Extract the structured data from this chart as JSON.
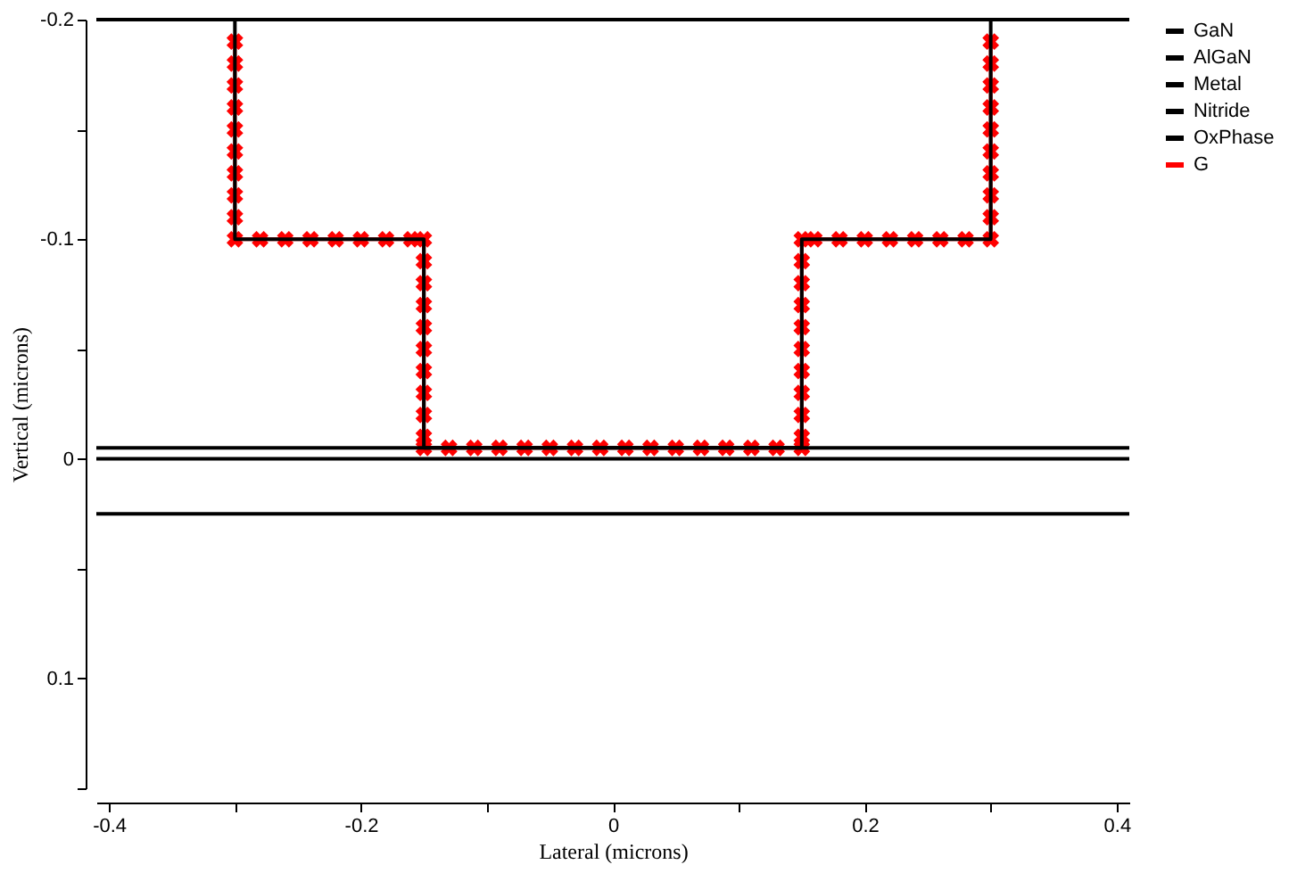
{
  "chart_data": {
    "type": "line",
    "xlabel": "Lateral (microns)",
    "ylabel": "Vertical (microns)",
    "xlim": [
      -0.41,
      0.41
    ],
    "ylim": [
      0.15,
      -0.2
    ],
    "xticks": [
      -0.4,
      {
        "value": -0.3,
        "label": null
      },
      -0.2,
      {
        "value": -0.1,
        "label": null
      },
      0,
      {
        "value": 0.1,
        "label": null
      },
      0.2,
      {
        "value": 0.3,
        "label": null
      },
      0.4
    ],
    "yticks": [
      -0.2,
      {
        "value": -0.15,
        "label": null
      },
      -0.1,
      {
        "value": -0.05,
        "label": null
      },
      0,
      {
        "value": 0.05,
        "label": null
      },
      0.1,
      {
        "value": 0.15,
        "label": null
      }
    ],
    "grid": false,
    "legend": "top right",
    "marker": "none",
    "line_style": "solid",
    "series": [
      {
        "name": "GaN",
        "color": "#000000",
        "x": [
          -0.41,
          0.41
        ],
        "values": [
          0.025,
          0.025
        ]
      },
      {
        "name": "AlGaN",
        "color": "#000000",
        "x": [
          -0.41,
          0.41
        ],
        "values": [
          0,
          0
        ]
      },
      {
        "name": "Metal",
        "color": "#000000",
        "x": [
          -0.3,
          -0.3,
          -0.15,
          -0.15,
          0.15,
          0.15,
          0.3,
          0.3
        ],
        "values": [
          -0.2,
          -0.1,
          -0.1,
          -0.005,
          -0.005,
          -0.1,
          -0.1,
          -0.2
        ]
      },
      {
        "name": "Nitride",
        "color": "#000000",
        "x": [
          -0.41,
          0.41
        ],
        "values": [
          -0.005,
          -0.005
        ]
      },
      {
        "name": "OxPhase",
        "color": "#000000",
        "x": [
          -0.41,
          0.41
        ],
        "values": [
          -0.2,
          -0.2
        ]
      },
      {
        "name": "G",
        "color": "#ff0000",
        "marker": "cross",
        "x": [
          -0.3,
          -0.3,
          -0.3,
          -0.3,
          -0.3,
          -0.3,
          -0.3,
          -0.3,
          -0.3,
          -0.3,
          -0.28,
          -0.26,
          -0.24,
          -0.22,
          -0.2,
          -0.18,
          -0.16,
          -0.15,
          -0.15,
          -0.15,
          -0.15,
          -0.15,
          -0.15,
          -0.15,
          -0.15,
          -0.15,
          -0.15,
          -0.15,
          -0.13,
          -0.11,
          -0.09,
          -0.07,
          -0.05,
          -0.03,
          -0.01,
          0.01,
          0.03,
          0.05,
          0.07,
          0.09,
          0.11,
          0.13,
          0.15,
          0.15,
          0.15,
          0.15,
          0.15,
          0.15,
          0.15,
          0.15,
          0.15,
          0.15,
          0.15,
          0.16,
          0.18,
          0.2,
          0.22,
          0.24,
          0.26,
          0.28,
          0.3,
          0.3,
          0.3,
          0.3,
          0.3,
          0.3,
          0.3,
          0.3,
          0.3,
          0.3
        ],
        "values": [
          -0.19,
          -0.18,
          -0.17,
          -0.16,
          -0.15,
          -0.14,
          -0.13,
          -0.12,
          -0.11,
          -0.1,
          -0.1,
          -0.1,
          -0.1,
          -0.1,
          -0.1,
          -0.1,
          -0.1,
          -0.1,
          -0.09,
          -0.08,
          -0.07,
          -0.06,
          -0.05,
          -0.04,
          -0.03,
          -0.02,
          -0.01,
          -0.005,
          -0.005,
          -0.005,
          -0.005,
          -0.005,
          -0.005,
          -0.005,
          -0.005,
          -0.005,
          -0.005,
          -0.005,
          -0.005,
          -0.005,
          -0.005,
          -0.005,
          -0.005,
          -0.01,
          -0.02,
          -0.03,
          -0.04,
          -0.05,
          -0.06,
          -0.07,
          -0.08,
          -0.09,
          -0.1,
          -0.1,
          -0.1,
          -0.1,
          -0.1,
          -0.1,
          -0.1,
          -0.1,
          -0.1,
          -0.11,
          -0.12,
          -0.13,
          -0.14,
          -0.15,
          -0.16,
          -0.17,
          -0.18,
          -0.19
        ]
      }
    ]
  }
}
